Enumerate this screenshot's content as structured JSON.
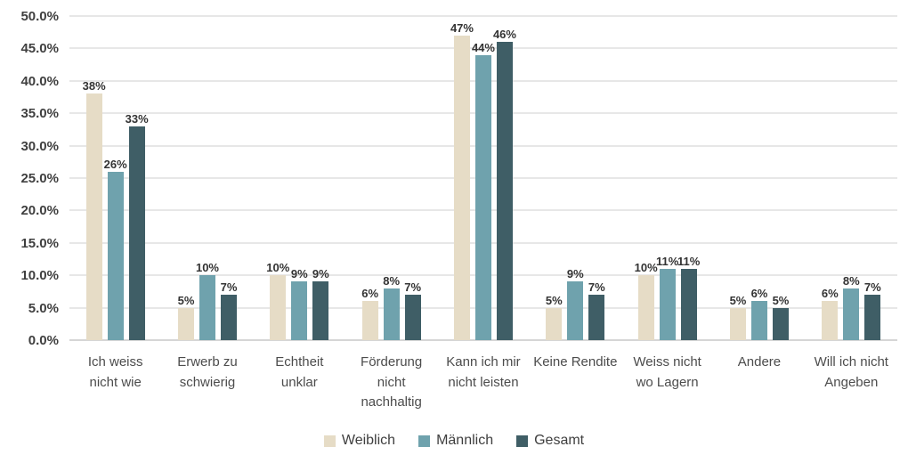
{
  "chart_data": {
    "type": "bar",
    "title": "",
    "categories": [
      "Ich weiss nicht wie",
      "Erwerb zu schwierig",
      "Echtheit unklar",
      "Förderung nicht nachhaltig",
      "Kann ich mir nicht leisten",
      "Keine Rendite",
      "Weiss nicht wo Lagern",
      "Andere",
      "Will ich nicht Angeben"
    ],
    "series": [
      {
        "name": "Weiblich",
        "color": "#e6dcc6",
        "values": [
          38,
          5,
          10,
          6,
          47,
          5,
          10,
          5,
          6
        ]
      },
      {
        "name": "Männlich",
        "color": "#6fa2ad",
        "values": [
          26,
          10,
          9,
          8,
          44,
          9,
          11,
          6,
          8
        ]
      },
      {
        "name": "Gesamt",
        "color": "#3f5e66",
        "values": [
          33,
          7,
          9,
          7,
          46,
          7,
          11,
          5,
          7
        ]
      }
    ],
    "value_label_suffix": "%",
    "ylim": [
      0,
      50
    ],
    "ytick_step": 5,
    "ytick_labels": [
      "0.0%",
      "5.0%",
      "10.0%",
      "15.0%",
      "20.0%",
      "25.0%",
      "30.0%",
      "35.0%",
      "40.0%",
      "45.0%",
      "50.0%"
    ],
    "grid": true,
    "legend_position": "bottom",
    "colors": {
      "gridline": "#e7e7e7",
      "baseline": "#d6d6d6",
      "tick_text": "#3f3f3f",
      "data_label_text": "#333333",
      "category_text": "#4c4c4c",
      "background": "#ffffff"
    }
  }
}
